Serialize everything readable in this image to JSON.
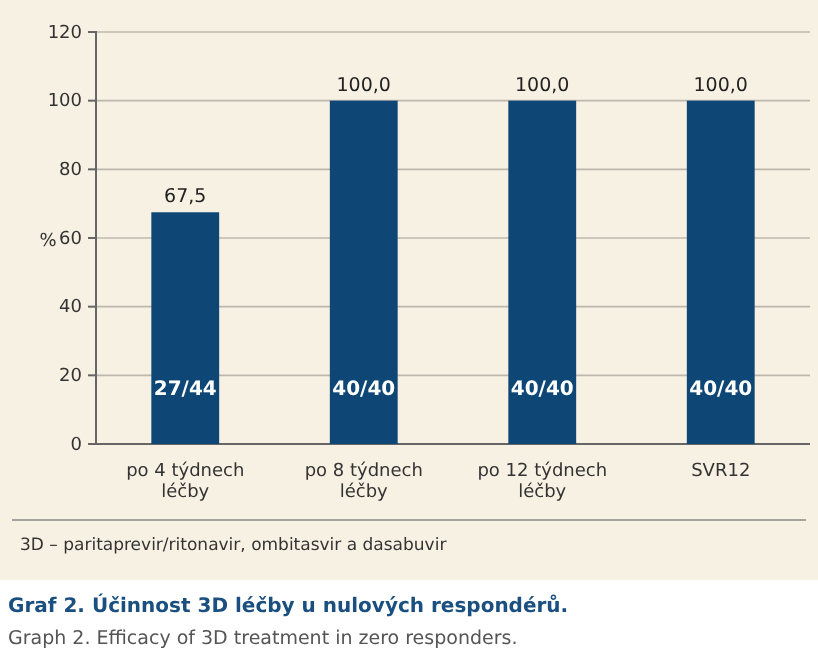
{
  "chart_data": {
    "type": "bar",
    "title": "Graf 2. Účinnost 3D léčby u nulových respondérů.",
    "subtitle": "Graph 2. Efficacy of 3D treatment in zero responders.",
    "ylabel": "%",
    "categories": [
      "po 4 týdnech léčby",
      "po 8 týdnech léčby",
      "po 12 týdnech léčby",
      "SVR12"
    ],
    "values": [
      67.5,
      100,
      100,
      100
    ],
    "color": "#0e4775",
    "value_labels": [
      "67,5",
      "100,0",
      "100,0",
      "100,0"
    ],
    "annotations": [
      "27/44",
      "40/40",
      "40/40",
      "40/40",
      "3D – paritaprevir/ritonavir, ombitasvir a dasabuvir"
    ],
    "ylim": [
      0,
      120
    ],
    "yticks": [
      0,
      20,
      40,
      60,
      80,
      100,
      120
    ],
    "grid": "y"
  }
}
